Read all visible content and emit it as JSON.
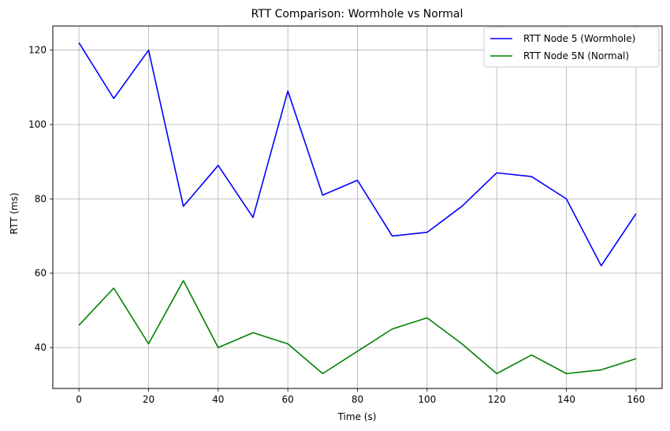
{
  "chart_data": {
    "type": "line",
    "title": "RTT Comparison: Wormhole vs Normal",
    "xlabel": "Time (s)",
    "ylabel": "RTT (ms)",
    "xlim": [
      -7.5,
      167.5
    ],
    "ylim": [
      29,
      126.5
    ],
    "grid": true,
    "legend_position": "top-right",
    "xticks": [
      0,
      20,
      40,
      60,
      80,
      100,
      120,
      140,
      160
    ],
    "yticks": [
      40,
      60,
      80,
      100,
      120
    ],
    "x": [
      0,
      10,
      20,
      30,
      40,
      50,
      60,
      70,
      80,
      90,
      100,
      110,
      120,
      130,
      140,
      150,
      160
    ],
    "series": [
      {
        "name": "RTT Node 5 (Wormhole)",
        "color": "#0000ff",
        "values": [
          122,
          107,
          120,
          78,
          89,
          75,
          109,
          81,
          85,
          70,
          71,
          78,
          87,
          86,
          80,
          62,
          76
        ]
      },
      {
        "name": "RTT Node 5N (Normal)",
        "color": "#008000",
        "values": [
          46,
          56,
          41,
          58,
          40,
          44,
          41,
          33,
          39,
          45,
          48,
          41,
          33,
          38,
          33,
          34,
          37
        ]
      }
    ]
  }
}
